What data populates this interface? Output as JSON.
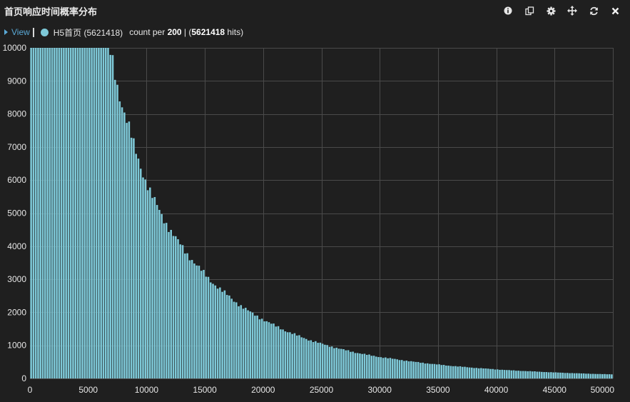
{
  "panel": {
    "title": "首页响应时间概率分布"
  },
  "toolbar": {
    "icons": [
      "info-icon",
      "copy-icon",
      "gear-icon",
      "move-icon",
      "refresh-icon",
      "close-icon"
    ]
  },
  "legend": {
    "view_label": "View",
    "series_label": "H5首页 (5621418)",
    "info_prefix": "count per ",
    "bin_size": "200",
    "info_middle": " | (",
    "hits_count": "5621418",
    "info_suffix": " hits)"
  },
  "colors": {
    "background": "#1f1f1f",
    "bar_fill": "#7ec9d8",
    "grid": "#4a4a4a",
    "text": "#e6e6e6",
    "link": "#5aa9d6"
  },
  "chart_data": {
    "type": "bar",
    "bin_width": 200,
    "xlim": [
      0,
      50000
    ],
    "ylim": [
      0,
      10000
    ],
    "x_ticks": [
      0,
      5000,
      10000,
      15000,
      20000,
      25000,
      30000,
      35000,
      40000,
      45000,
      50000
    ],
    "y_ticks": [
      0,
      1000,
      2000,
      3000,
      4000,
      5000,
      6000,
      7000,
      8000,
      9000,
      10000
    ],
    "grid": true,
    "series": [
      {
        "name": "H5首页 (5621418)",
        "description": "response time histogram; counts per 200 ms bin, clipped at 10000 for bins below ~7000",
        "x": [
          0,
          1000,
          2000,
          3000,
          4000,
          5000,
          6000,
          6800,
          7000,
          7200,
          7400,
          7600,
          7800,
          8000,
          8200,
          8400,
          8600,
          8800,
          9000,
          9200,
          9400,
          9600,
          9800,
          10000,
          10500,
          11000,
          11500,
          12000,
          12500,
          13000,
          13500,
          14000,
          14500,
          15000,
          15500,
          16000,
          16500,
          17000,
          17500,
          18000,
          18500,
          19000,
          19500,
          20000,
          21000,
          22000,
          23000,
          24000,
          25000,
          26000,
          27000,
          28000,
          29000,
          30000,
          31000,
          32000,
          33000,
          34000,
          35000,
          36000,
          37000,
          38000,
          39000,
          40000,
          41000,
          42000,
          43000,
          44000,
          45000,
          46000,
          47000,
          48000,
          49000,
          49800
        ],
        "values": [
          10000,
          10000,
          10000,
          10000,
          10000,
          10000,
          10000,
          10000,
          9700,
          9450,
          9000,
          8700,
          8400,
          8150,
          7900,
          7700,
          7450,
          7200,
          6950,
          6750,
          6500,
          6300,
          6100,
          5900,
          5500,
          5150,
          4800,
          4500,
          4250,
          4000,
          3750,
          3550,
          3350,
          3150,
          2950,
          2800,
          2650,
          2500,
          2350,
          2220,
          2100,
          1980,
          1880,
          1780,
          1600,
          1430,
          1290,
          1160,
          1050,
          950,
          860,
          780,
          710,
          650,
          600,
          550,
          500,
          460,
          420,
          385,
          355,
          325,
          300,
          275,
          250,
          232,
          215,
          198,
          182,
          168,
          155,
          143,
          132,
          125
        ]
      }
    ]
  }
}
